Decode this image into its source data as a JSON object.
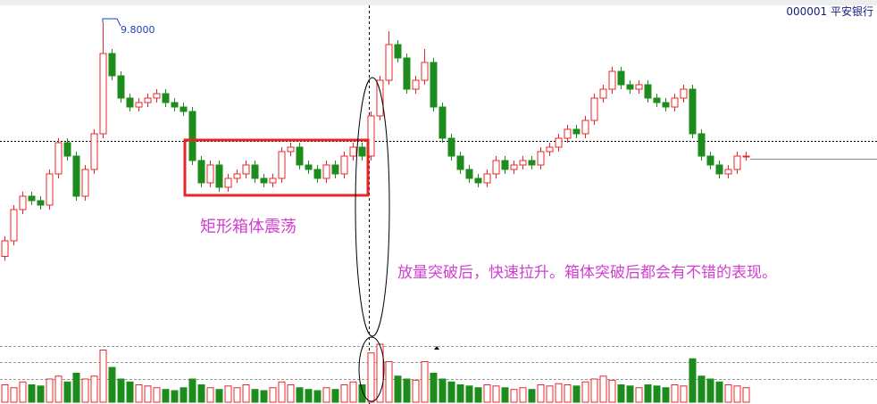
{
  "chart_data": {
    "type": "candlestick",
    "title": "000001 平安银行",
    "open": [
      7.7,
      7.84,
      8.12,
      8.24,
      8.2,
      8.16,
      8.44,
      8.72,
      8.6,
      8.24,
      8.48,
      8.8,
      9.52,
      9.32,
      9.12,
      9.04,
      9.08,
      9.12,
      9.16,
      9.08,
      9.04,
      9.0,
      8.56,
      8.36,
      8.52,
      8.32,
      8.4,
      8.44,
      8.52,
      8.4,
      8.36,
      8.4,
      8.64,
      8.68,
      8.52,
      8.48,
      8.4,
      8.52,
      8.44,
      8.6,
      8.68,
      8.6,
      8.96,
      9.28,
      9.6,
      9.48,
      9.2,
      9.28,
      9.44,
      9.04,
      8.76,
      8.6,
      8.48,
      8.4,
      8.36,
      8.44,
      8.56,
      8.48,
      8.52,
      8.56,
      8.52,
      8.64,
      8.68,
      8.76,
      8.84,
      8.8,
      8.92,
      9.12,
      9.2,
      9.36,
      9.24,
      9.2,
      9.24,
      9.12,
      9.08,
      9.04,
      9.12,
      9.2,
      8.8,
      8.6,
      8.52,
      8.44,
      8.48,
      8.6
    ],
    "high": [
      7.88,
      8.16,
      8.28,
      8.28,
      8.24,
      8.48,
      8.76,
      8.76,
      8.64,
      8.52,
      8.84,
      9.8,
      9.56,
      9.36,
      9.16,
      9.12,
      9.16,
      9.2,
      9.2,
      9.12,
      9.08,
      9.04,
      8.6,
      8.56,
      8.56,
      8.44,
      8.48,
      8.56,
      8.56,
      8.44,
      8.44,
      8.68,
      8.72,
      8.72,
      8.56,
      8.52,
      8.56,
      8.56,
      8.64,
      8.72,
      8.72,
      9.0,
      9.32,
      9.72,
      9.64,
      9.52,
      9.32,
      9.56,
      9.48,
      9.08,
      8.8,
      8.64,
      8.52,
      8.44,
      8.48,
      8.6,
      8.6,
      8.56,
      8.6,
      8.6,
      8.68,
      8.72,
      8.8,
      8.88,
      8.88,
      8.96,
      9.16,
      9.24,
      9.4,
      9.4,
      9.28,
      9.28,
      9.28,
      9.16,
      9.12,
      9.16,
      9.24,
      9.24,
      8.84,
      8.64,
      8.56,
      8.52,
      8.64,
      8.64
    ],
    "low": [
      7.66,
      7.8,
      8.08,
      8.16,
      8.12,
      8.12,
      8.4,
      8.56,
      8.2,
      8.2,
      8.44,
      8.76,
      9.28,
      9.08,
      9.0,
      9.0,
      9.04,
      9.08,
      9.04,
      9.0,
      8.96,
      8.52,
      8.32,
      8.32,
      8.28,
      8.28,
      8.36,
      8.4,
      8.36,
      8.32,
      8.32,
      8.36,
      8.6,
      8.48,
      8.44,
      8.36,
      8.36,
      8.4,
      8.4,
      8.56,
      8.56,
      8.56,
      8.92,
      9.24,
      9.44,
      9.16,
      9.16,
      9.24,
      9.0,
      8.72,
      8.56,
      8.44,
      8.36,
      8.32,
      8.32,
      8.4,
      8.44,
      8.44,
      8.48,
      8.48,
      8.48,
      8.6,
      8.64,
      8.72,
      8.76,
      8.76,
      8.88,
      9.08,
      9.16,
      9.2,
      9.16,
      9.16,
      9.08,
      9.04,
      9.0,
      9.0,
      9.08,
      8.76,
      8.56,
      8.48,
      8.4,
      8.4,
      8.44,
      8.56
    ],
    "close": [
      7.84,
      8.12,
      8.24,
      8.2,
      8.16,
      8.44,
      8.72,
      8.6,
      8.24,
      8.48,
      8.8,
      9.52,
      9.32,
      9.12,
      9.04,
      9.08,
      9.12,
      9.16,
      9.08,
      9.04,
      9.0,
      8.56,
      8.36,
      8.52,
      8.32,
      8.4,
      8.44,
      8.52,
      8.4,
      8.36,
      8.4,
      8.64,
      8.68,
      8.52,
      8.48,
      8.4,
      8.52,
      8.44,
      8.6,
      8.68,
      8.6,
      8.96,
      9.28,
      9.6,
      9.48,
      9.2,
      9.28,
      9.44,
      9.04,
      8.76,
      8.6,
      8.48,
      8.4,
      8.36,
      8.44,
      8.56,
      8.48,
      8.52,
      8.56,
      8.52,
      8.64,
      8.68,
      8.76,
      8.84,
      8.8,
      8.92,
      9.12,
      9.2,
      9.36,
      9.24,
      9.2,
      9.24,
      9.12,
      9.08,
      9.04,
      9.12,
      9.2,
      8.8,
      8.6,
      8.52,
      8.44,
      8.48,
      8.6,
      8.6
    ],
    "volume": [
      30,
      25,
      35,
      30,
      28,
      40,
      45,
      35,
      50,
      40,
      45,
      90,
      60,
      40,
      35,
      30,
      28,
      25,
      22,
      20,
      25,
      40,
      30,
      25,
      22,
      28,
      25,
      30,
      22,
      20,
      25,
      35,
      30,
      25,
      22,
      20,
      25,
      22,
      30,
      35,
      30,
      85,
      100,
      70,
      45,
      40,
      38,
      70,
      50,
      40,
      35,
      30,
      28,
      25,
      30,
      28,
      25,
      22,
      25,
      22,
      30,
      28,
      32,
      30,
      28,
      35,
      40,
      45,
      38,
      30,
      28,
      25,
      30,
      28,
      25,
      30,
      28,
      75,
      45,
      40,
      35,
      30,
      28,
      25
    ],
    "ylim": [
      7.6,
      10.0
    ],
    "volume_ylim": [
      0,
      100
    ],
    "up_color": "#e8262a",
    "down_color": "#1c8c1c",
    "annotations": [
      {
        "text": "9.8000",
        "value": 9.8
      },
      {
        "text": "矩形箱体震荡"
      },
      {
        "text": "放量突破后，快速拉升。箱体突破后都会有不错的表现。"
      }
    ]
  }
}
